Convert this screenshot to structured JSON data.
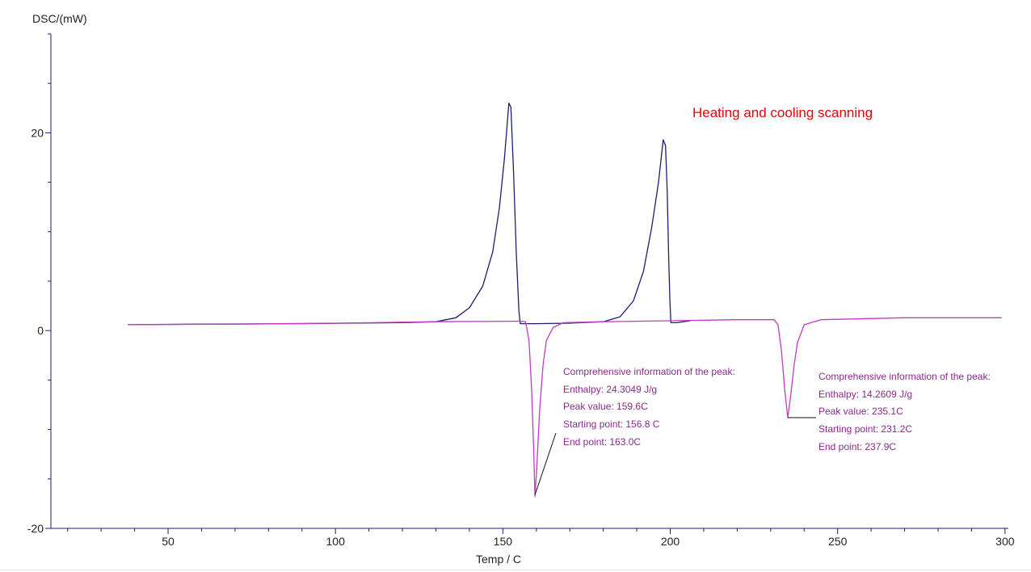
{
  "chart_data": {
    "type": "line",
    "title": "Heating and cooling scanning",
    "xlabel": "Temp / C",
    "ylabel": "DSC/(mW)",
    "xlim": [
      15,
      301
    ],
    "ylim": [
      -20,
      30
    ],
    "x_ticks": [
      50,
      100,
      150,
      200,
      250,
      300
    ],
    "y_ticks": [
      -20,
      0,
      20
    ],
    "grid": false,
    "series": [
      {
        "color": "#1e1e6e",
        "points": [
          [
            38,
            0.6
          ],
          [
            60,
            0.65
          ],
          [
            90,
            0.7
          ],
          [
            120,
            0.8
          ],
          [
            130,
            0.9
          ],
          [
            136,
            1.3
          ],
          [
            140,
            2.3
          ],
          [
            144,
            4.5
          ],
          [
            147,
            8
          ],
          [
            149,
            12.5
          ],
          [
            150.5,
            17.5
          ],
          [
            151.8,
            23
          ],
          [
            152.4,
            22.6
          ],
          [
            153.2,
            16
          ],
          [
            154,
            8
          ],
          [
            154.8,
            2
          ],
          [
            155.2,
            0.7
          ],
          [
            160,
            0.7
          ],
          [
            170,
            0.75
          ],
          [
            180,
            0.9
          ],
          [
            185,
            1.4
          ],
          [
            189,
            3
          ],
          [
            192,
            6
          ],
          [
            194.5,
            10.5
          ],
          [
            196.5,
            15
          ],
          [
            197.9,
            19.3
          ],
          [
            198.6,
            18.7
          ],
          [
            199.1,
            14
          ],
          [
            199.5,
            8
          ],
          [
            199.9,
            3
          ],
          [
            200.2,
            0.8
          ],
          [
            202,
            0.8
          ],
          [
            206,
            1.0
          ]
        ]
      },
      {
        "color": "#c23ac2",
        "points": [
          [
            38,
            0.6
          ],
          [
            70,
            0.65
          ],
          [
            100,
            0.75
          ],
          [
            130,
            0.9
          ],
          [
            155,
            0.95
          ],
          [
            156.8,
            0.9
          ],
          [
            157.8,
            -1
          ],
          [
            158.6,
            -6
          ],
          [
            159.2,
            -12
          ],
          [
            159.6,
            -16.8
          ],
          [
            160.1,
            -14
          ],
          [
            161,
            -8
          ],
          [
            162,
            -3.5
          ],
          [
            163,
            -1
          ],
          [
            165,
            0.3
          ],
          [
            168,
            0.8
          ],
          [
            180,
            0.9
          ],
          [
            200,
            1.0
          ],
          [
            220,
            1.1
          ],
          [
            231,
            1.1
          ],
          [
            232.2,
            0.6
          ],
          [
            233.2,
            -2
          ],
          [
            234.2,
            -6
          ],
          [
            235.1,
            -8.8
          ],
          [
            236,
            -6.5
          ],
          [
            237,
            -3.5
          ],
          [
            238,
            -1.2
          ],
          [
            240,
            0.6
          ],
          [
            245,
            1.1
          ],
          [
            270,
            1.3
          ],
          [
            299,
            1.3
          ]
        ]
      }
    ],
    "annotations": [
      {
        "peak": [
          159.6,
          -16.6
        ],
        "lines": [
          "Comprehensive information of the peak:",
          "Enthalpy: 24.3049 J/g",
          "Peak value: 159.6C",
          "Starting point: 156.8 C",
          "End point: 163.0C"
        ]
      },
      {
        "peak": [
          235.1,
          -8.8
        ],
        "lines": [
          "Comprehensive information of the peak:",
          "Enthalpy: 14.2609 J/g",
          "Peak value: 235.1C",
          "Starting point: 231.2C",
          "End point: 237.9C"
        ]
      }
    ],
    "colors": {
      "axis": "#1e1e6e",
      "annotation_text": "#8b2a8b",
      "title": "#e8000a"
    }
  }
}
